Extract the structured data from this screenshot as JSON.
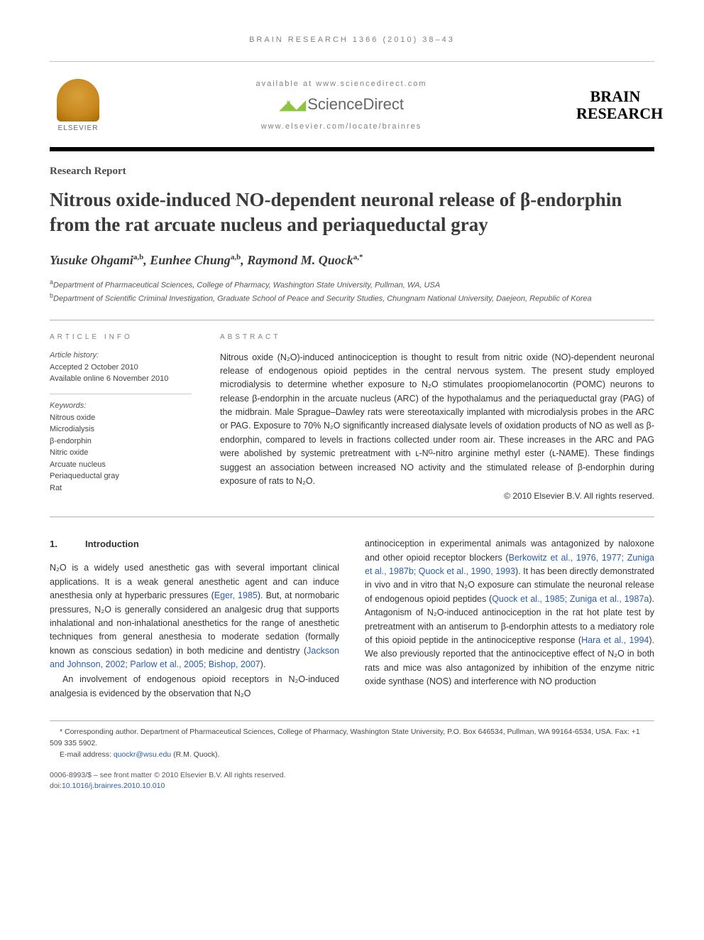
{
  "running_head": "BRAIN RESEARCH 1366 (2010) 38–43",
  "header": {
    "available_at": "available at www.sciencedirect.com",
    "sd_brand": "ScienceDirect",
    "locate": "www.elsevier.com/locate/brainres",
    "publisher": "ELSEVIER",
    "journal_line1": "BRAIN",
    "journal_line2": "RESEARCH"
  },
  "article": {
    "type": "Research Report",
    "title": "Nitrous oxide-induced NO-dependent neuronal release of β-endorphin from the rat arcuate nucleus and periaqueductal gray",
    "authors_html": "Yusuke Ohgami<sup>a,b</sup>, Eunhee Chung<sup>a,b</sup>, Raymond M. Quock<sup>a,*</sup>",
    "affiliations": [
      "Department of Pharmaceutical Sciences, College of Pharmacy, Washington State University, Pullman, WA, USA",
      "Department of Scientific Criminal Investigation, Graduate School of Peace and Security Studies, Chungnam National University, Daejeon, Republic of Korea"
    ],
    "aff_markers": [
      "a",
      "b"
    ]
  },
  "info": {
    "label": "ARTICLE INFO",
    "history_label": "Article history:",
    "accepted": "Accepted 2 October 2010",
    "online": "Available online 6 November 2010",
    "keywords_label": "Keywords:",
    "keywords": [
      "Nitrous oxide",
      "Microdialysis",
      "β-endorphin",
      "Nitric oxide",
      "Arcuate nucleus",
      "Periaqueductal gray",
      "Rat"
    ]
  },
  "abstract": {
    "label": "ABSTRACT",
    "text": "Nitrous oxide (N₂O)-induced antinociception is thought to result from nitric oxide (NO)-dependent neuronal release of endogenous opioid peptides in the central nervous system. The present study employed microdialysis to determine whether exposure to N₂O stimulates proopiomelanocortin (POMC) neurons to release β-endorphin in the arcuate nucleus (ARC) of the hypothalamus and the periaqueductal gray (PAG) of the midbrain. Male Sprague–Dawley rats were stereotaxically implanted with microdialysis probes in the ARC or PAG. Exposure to 70% N₂O significantly increased dialysate levels of oxidation products of NO as well as β-endorphin, compared to levels in fractions collected under room air. These increases in the ARC and PAG were abolished by systemic pretreatment with ʟ-Nᴳ-nitro arginine methyl ester (ʟ-NAME). These findings suggest an association between increased NO activity and the stimulated release of β-endorphin during exposure of rats to N₂O.",
    "copyright": "© 2010 Elsevier B.V. All rights reserved."
  },
  "body": {
    "sec_num": "1.",
    "sec_title": "Introduction",
    "col1_p1": "N₂O is a widely used anesthetic gas with several important clinical applications. It is a weak general anesthetic agent and can induce anesthesia only at hyperbaric pressures (",
    "col1_c1": "Eger, 1985",
    "col1_p1b": "). But, at normobaric pressures, N₂O is generally considered an analgesic drug that supports inhalational and non-inhalational anesthetics for the range of anesthetic techniques from general anesthesia to moderate sedation (formally known as conscious sedation) in both medicine and dentistry (",
    "col1_c2": "Jackson and Johnson, 2002; Parlow et al., 2005; Bishop, 2007",
    "col1_p1c": ").",
    "col1_p2": "An involvement of endogenous opioid receptors in N₂O-induced analgesia is evidenced by the observation that N₂O",
    "col2_p1a": "antinociception in experimental animals was antagonized by naloxone and other opioid receptor blockers (",
    "col2_c1": "Berkowitz et al., 1976, 1977; Zuniga et al., 1987b; Quock et al., 1990, 1993",
    "col2_p1b": "). It has been directly demonstrated in vivo and in vitro that N₂O exposure can stimulate the neuronal release of endogenous opioid peptides (",
    "col2_c2": "Quock et al., 1985; Zuniga et al., 1987a",
    "col2_p1c": "). Antagonism of N₂O-induced antinociception in the rat hot plate test by pretreatment with an antiserum to β-endorphin attests to a mediatory role of this opioid peptide in the antinociceptive response (",
    "col2_c3": "Hara et al., 1994",
    "col2_p1d": "). We also previously reported that the antinociceptive effect of N₂O in both rats and mice was also antagonized by inhibition of the enzyme nitric oxide synthase (NOS) and interference with NO production"
  },
  "footnotes": {
    "corr": "* Corresponding author. Department of Pharmaceutical Sciences, College of Pharmacy, Washington State University, P.O. Box 646534, Pullman, WA 99164-6534, USA. Fax: +1 509 335 5902.",
    "email_label": "E-mail address: ",
    "email": "quockr@wsu.edu",
    "email_who": " (R.M. Quock)."
  },
  "front_matter": {
    "line1": "0006-8993/$ – see front matter © 2010 Elsevier B.V. All rights reserved.",
    "doi_label": "doi:",
    "doi": "10.1016/j.brainres.2010.10.010"
  },
  "colors": {
    "citation": "#2a5db0",
    "gray_text": "#808080",
    "rule_dark": "#000000",
    "rule_light": "#b0b0b0",
    "elsevier_orange": "#e98300",
    "sd_green": "#8cc63f"
  },
  "typography": {
    "title_pt": 27,
    "authors_pt": 18,
    "body_pt": 12.5,
    "abstract_pt": 12.5,
    "info_pt": 11,
    "footnote_pt": 10.5
  }
}
